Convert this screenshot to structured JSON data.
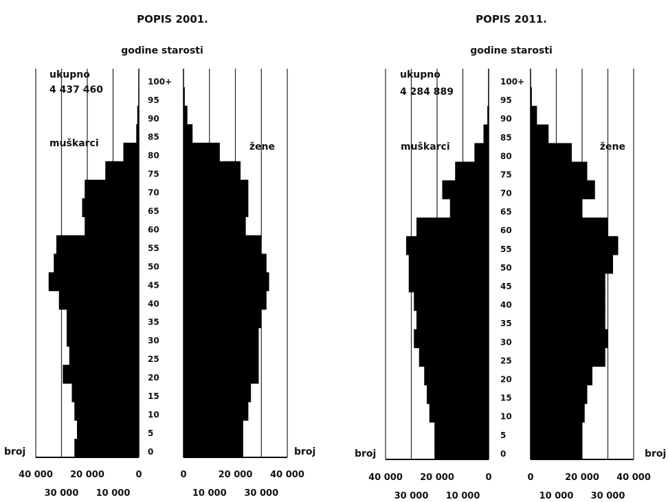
{
  "chart_data": [
    {
      "type": "bar",
      "orientation": "horizontal",
      "layout": "population-pyramid",
      "title": "POPIS 2001.",
      "age_axis_label": "godine starosti",
      "total_label": "ukupno",
      "total_value": "4 437 460",
      "left_group": "muškarci",
      "right_group": "žene",
      "count_label": "broj",
      "age_ticks": [
        "0",
        "5",
        "10",
        "15",
        "20",
        "25",
        "30",
        "35",
        "40",
        "45",
        "50",
        "55",
        "60",
        "65",
        "70",
        "75",
        "80",
        "85",
        "90",
        "95",
        "100+"
      ],
      "x_tick_labels_top": [
        "40 000",
        "20 000",
        "0",
        "0",
        "20 000",
        "40 000"
      ],
      "x_tick_labels_bottom": [
        "30 000",
        "10 000",
        "10 000",
        "30 000"
      ],
      "xlim": [
        0,
        40000
      ],
      "grid": true,
      "categories": [
        "0",
        "5",
        "10",
        "15",
        "20",
        "25",
        "30",
        "35",
        "40",
        "45",
        "50",
        "55",
        "60",
        "65",
        "70",
        "75",
        "80",
        "85",
        "90",
        "95",
        "100+"
      ],
      "series": [
        {
          "name": "muškarci",
          "values": [
            25000,
            24000,
            25000,
            26000,
            29500,
            27000,
            28000,
            28000,
            31000,
            35000,
            33000,
            32000,
            21000,
            22000,
            21000,
            13000,
            6000,
            1000,
            600,
            200,
            10
          ]
        },
        {
          "name": "žene",
          "values": [
            23000,
            23000,
            25000,
            26000,
            29000,
            29000,
            29000,
            30000,
            32000,
            33000,
            32000,
            30000,
            24000,
            25000,
            25000,
            22000,
            14000,
            3500,
            1500,
            500,
            30
          ]
        }
      ]
    },
    {
      "type": "bar",
      "orientation": "horizontal",
      "layout": "population-pyramid",
      "title": "POPIS 2011.",
      "age_axis_label": "godine starosti",
      "total_label": "ukupno",
      "total_value": "4 284 889",
      "left_group": "muškarci",
      "right_group": "žene",
      "count_label": "broj",
      "age_ticks": [
        "0",
        "5",
        "10",
        "15",
        "20",
        "25",
        "30",
        "35",
        "40",
        "45",
        "50",
        "55",
        "60",
        "65",
        "70",
        "75",
        "80",
        "85",
        "90",
        "95",
        "100+"
      ],
      "x_tick_labels_top": [
        "40 000",
        "20 000",
        "0",
        "0",
        "20 000",
        "40 000"
      ],
      "x_tick_labels_bottom": [
        "30 000",
        "10 000",
        "10 000",
        "30 000"
      ],
      "xlim": [
        0,
        40000
      ],
      "grid": true,
      "categories": [
        "0",
        "5",
        "10",
        "15",
        "20",
        "25",
        "30",
        "35",
        "40",
        "45",
        "50",
        "55",
        "60",
        "65",
        "70",
        "75",
        "80",
        "85",
        "90",
        "95",
        "100+"
      ],
      "series": [
        {
          "name": "muškarci",
          "values": [
            21000,
            21000,
            23000,
            24000,
            25000,
            27000,
            29000,
            28000,
            29000,
            31000,
            31000,
            32000,
            28000,
            15000,
            18000,
            13000,
            5500,
            2000,
            500,
            150,
            10
          ]
        },
        {
          "name": "žene",
          "values": [
            20000,
            20000,
            21000,
            22000,
            24000,
            29000,
            30000,
            29000,
            29000,
            29000,
            32000,
            34000,
            30000,
            20000,
            25000,
            22000,
            16000,
            7000,
            2500,
            500,
            30
          ]
        }
      ]
    }
  ]
}
